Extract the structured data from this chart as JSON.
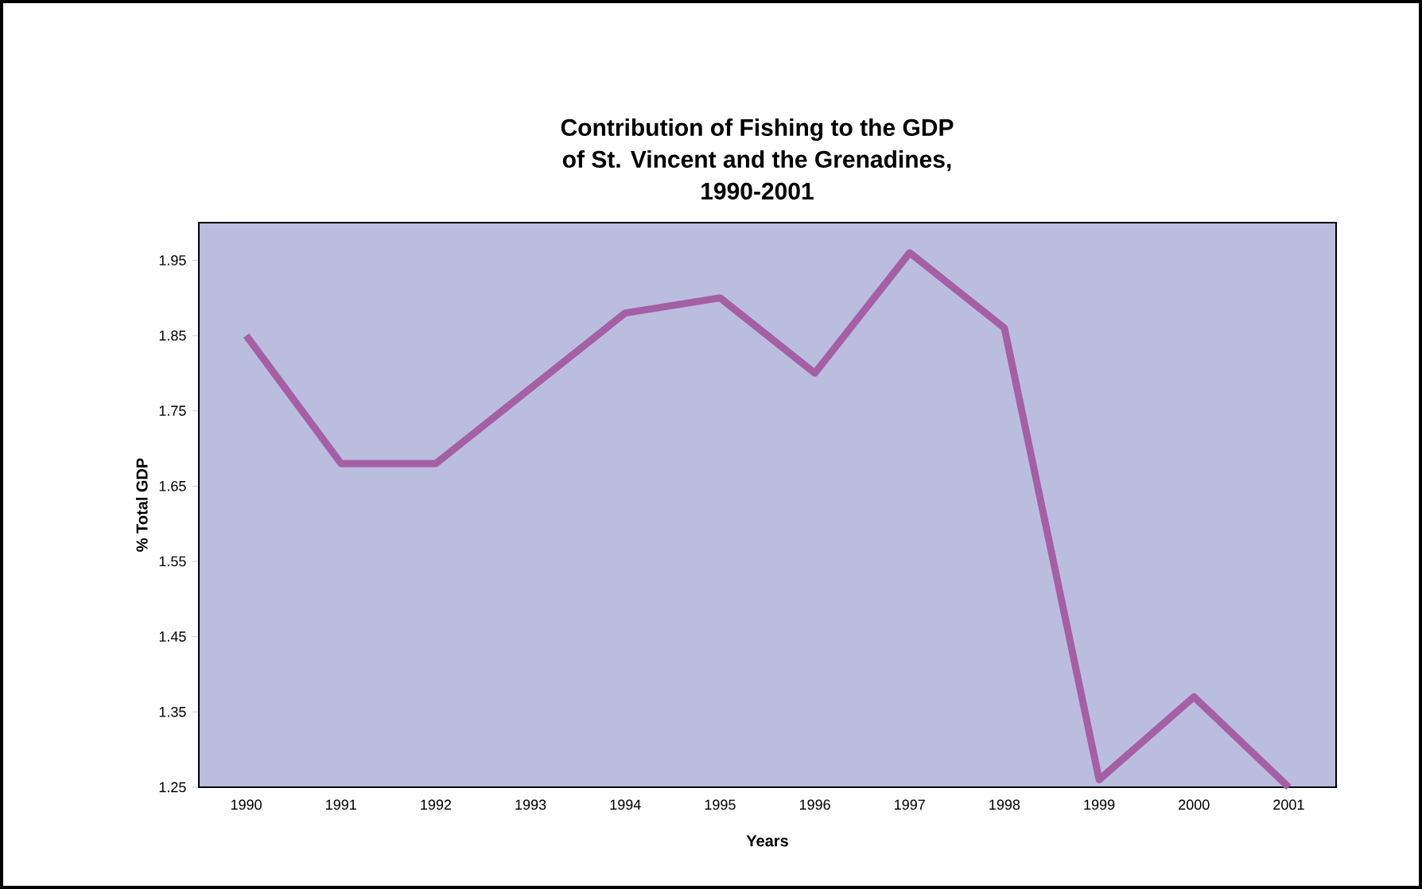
{
  "chart_data": {
    "type": "line",
    "title": "Contribution of Fishing to the GDP\nof St. Vincent and the Grenadines,\n1990-2001",
    "xlabel": "Years",
    "ylabel": "% Total GDP",
    "categories": [
      "1990",
      "1991",
      "1992",
      "1993",
      "1994",
      "1995",
      "1996",
      "1997",
      "1998",
      "1999",
      "2000",
      "2001"
    ],
    "series": [
      {
        "color": "#a55fa5",
        "values": [
          1.85,
          1.68,
          1.68,
          1.78,
          1.88,
          1.9,
          1.8,
          1.96,
          1.86,
          1.26,
          1.37,
          1.25
        ]
      }
    ],
    "ylim": [
      1.25,
      2.0
    ],
    "yticks": [
      1.25,
      1.35,
      1.45,
      1.55,
      1.65,
      1.75,
      1.85,
      1.95
    ],
    "grid": false,
    "marker": "none",
    "line_style": "solid"
  }
}
